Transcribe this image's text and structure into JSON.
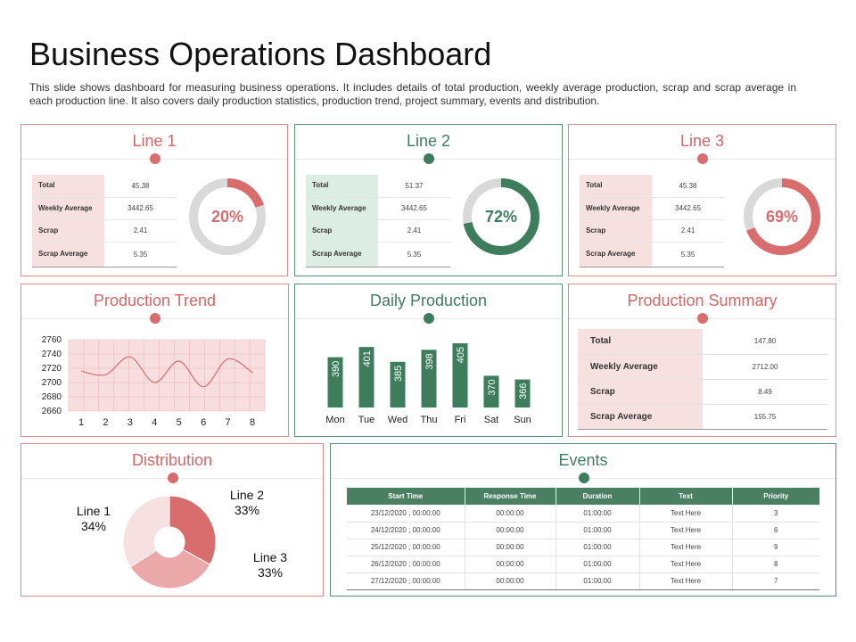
{
  "page": {
    "title": "Business Operations Dashboard",
    "subtitle": "This slide shows dashboard for measuring business operations. It includes details of total production, weekly average  production, scrap and scrap average  in each production line. It also covers daily production  statistics, production trend, project summary, events and distribution."
  },
  "colors": {
    "red": "#d96c6c",
    "light_red": "#f6e0e0",
    "green": "#3e7d5c",
    "light_green": "#dceee3",
    "grey": "#d9d9d9"
  },
  "lines": [
    {
      "title": "Line 1",
      "rows": [
        {
          "label": "Total",
          "value": "45.38"
        },
        {
          "label": "Weekly Average",
          "value": "3442.65"
        },
        {
          "label": "Scrap",
          "value": "2.41"
        },
        {
          "label": "Scrap Average",
          "value": "5.35"
        }
      ],
      "percent_label": "20%",
      "percent": 20
    },
    {
      "title": "Line 2",
      "rows": [
        {
          "label": "Total",
          "value": "51.37"
        },
        {
          "label": "Weekly Average",
          "value": "3442.65"
        },
        {
          "label": "Scrap",
          "value": "2.41"
        },
        {
          "label": "Scrap Average",
          "value": "5.35"
        }
      ],
      "percent_label": "72%",
      "percent": 72
    },
    {
      "title": "Line 3",
      "rows": [
        {
          "label": "Total",
          "value": "45.38"
        },
        {
          "label": "Weekly Average",
          "value": "3442.65"
        },
        {
          "label": "Scrap",
          "value": "2.41"
        },
        {
          "label": "Scrap Average",
          "value": "5.35"
        }
      ],
      "percent_label": "69%",
      "percent": 69
    }
  ],
  "production_trend": {
    "title": "Production Trend"
  },
  "daily_production": {
    "title": "Daily Production"
  },
  "production_summary": {
    "title": "Production Summary",
    "rows": [
      {
        "label": "Total",
        "value": "147.80"
      },
      {
        "label": "Weekly Average",
        "value": "2712.00"
      },
      {
        "label": "Scrap",
        "value": "8.49"
      },
      {
        "label": "Scrap Average",
        "value": "155.75"
      }
    ]
  },
  "distribution": {
    "title": "Distribution"
  },
  "events": {
    "title": "Events",
    "columns": [
      "Start Time",
      "Response Time",
      "Duration",
      "Text",
      "Priority"
    ],
    "rows": [
      [
        "23/12/2020 ; 00:00:00",
        "00:00:00",
        "01:00:00",
        "Text Here",
        "3"
      ],
      [
        "24/12/2020 ; 00:00:00",
        "00:00:00",
        "01:00:00",
        "Text Here",
        "6"
      ],
      [
        "25/12/2020 ; 00:00:00",
        "00:00:00",
        "01:00:00",
        "Text Here",
        "9"
      ],
      [
        "26/12/2020 ; 00:00:00",
        "00:00:00",
        "01:00:00",
        "Text Here",
        "8"
      ],
      [
        "27/12/2020 ; 00:00:00",
        "00:00:00",
        "01:00:00",
        "Text Here",
        "7"
      ]
    ]
  },
  "chart_data": [
    {
      "type": "line",
      "x": [
        1,
        2,
        3,
        4,
        5,
        6,
        7,
        8
      ],
      "x_tick_labels": [
        "1",
        "2",
        "3",
        "4",
        "5",
        "6",
        "7",
        "8"
      ],
      "series": [
        {
          "values": [
            2716,
            2711,
            2736,
            2700,
            2730,
            2694,
            2733,
            2714
          ]
        }
      ],
      "y_tick_labels": [
        "2760",
        "2740",
        "2720",
        "2700",
        "2680",
        "2660"
      ],
      "ylim": [
        2660,
        2760
      ],
      "grid": true
    },
    {
      "type": "bar",
      "categories": [
        "Mon",
        "Tue",
        "Wed",
        "Thu",
        "Fri",
        "Sat",
        "Sun"
      ],
      "values": [
        390,
        401,
        385,
        398,
        405,
        370,
        366
      ],
      "value_labels": [
        "390",
        "401",
        "385",
        "398",
        "405",
        "370",
        "366"
      ]
    },
    {
      "type": "pie",
      "donut": true,
      "slices": [
        {
          "name": "Line 1",
          "value": 34,
          "label": "34%"
        },
        {
          "name": "Line 2",
          "value": 33,
          "label": "33%"
        },
        {
          "name": "Line 3",
          "value": 33,
          "label": "33%"
        }
      ]
    }
  ]
}
